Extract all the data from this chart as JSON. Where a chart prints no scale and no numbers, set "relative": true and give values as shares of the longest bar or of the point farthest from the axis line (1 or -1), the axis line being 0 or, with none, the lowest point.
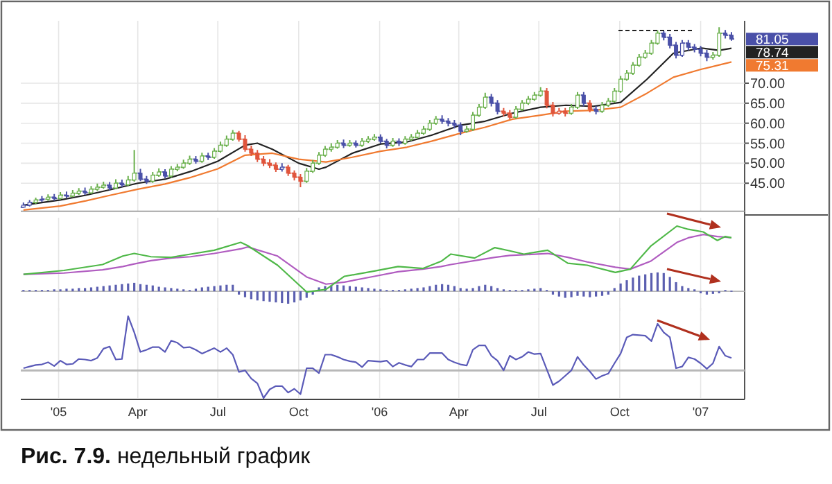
{
  "chart_data": [
    {
      "type": "candlestick",
      "xlim": [
        "2004-11-19",
        "2007-02-20"
      ],
      "ylim": [
        38,
        85.6
      ],
      "xticks": [
        {
          "value": "2005-01-01",
          "label": null
        },
        {
          "value": "2005-04-01",
          "label": null
        },
        {
          "value": "2005-07-01",
          "label": null
        },
        {
          "value": "2005-10-01",
          "label": null
        },
        {
          "value": "2006-01-01",
          "label": null
        },
        {
          "value": "2006-04-01",
          "label": null
        },
        {
          "value": "2006-07-01",
          "label": null
        },
        {
          "value": "2006-10-01",
          "label": null
        },
        {
          "value": "2007-01-01",
          "label": null
        }
      ],
      "yticks": [
        {
          "value": 45,
          "label": "45.00"
        },
        {
          "value": 50,
          "label": "50.00"
        },
        {
          "value": 55,
          "label": "55.00"
        },
        {
          "value": 60,
          "label": "60.00"
        },
        {
          "value": 65,
          "label": "65.00"
        },
        {
          "value": 70,
          "label": "70.00"
        }
      ],
      "grid": true,
      "tick_labels": "y",
      "x": [
        "2004-11-22",
        "2004-11-29",
        "2004-12-06",
        "2004-12-13",
        "2004-12-20",
        "2004-12-27",
        "2005-01-03",
        "2005-01-10",
        "2005-01-17",
        "2005-01-24",
        "2005-01-31",
        "2005-02-07",
        "2005-02-14",
        "2005-02-21",
        "2005-02-28",
        "2005-03-07",
        "2005-03-14",
        "2005-03-21",
        "2005-03-28",
        "2005-04-04",
        "2005-04-11",
        "2005-04-18",
        "2005-04-25",
        "2005-05-02",
        "2005-05-09",
        "2005-05-16",
        "2005-05-23",
        "2005-05-30",
        "2005-06-06",
        "2005-06-13",
        "2005-06-20",
        "2005-06-27",
        "2005-07-04",
        "2005-07-11",
        "2005-07-18",
        "2005-07-25",
        "2005-08-01",
        "2005-08-08",
        "2005-08-15",
        "2005-08-22",
        "2005-08-29",
        "2005-09-05",
        "2005-09-12",
        "2005-09-19",
        "2005-09-26",
        "2005-10-03",
        "2005-10-10",
        "2005-10-17",
        "2005-10-24",
        "2005-10-31",
        "2005-11-07",
        "2005-11-14",
        "2005-11-21",
        "2005-11-28",
        "2005-12-05",
        "2005-12-12",
        "2005-12-19",
        "2005-12-26",
        "2006-01-02",
        "2006-01-09",
        "2006-01-16",
        "2006-01-23",
        "2006-01-30",
        "2006-02-06",
        "2006-02-13",
        "2006-02-20",
        "2006-02-27",
        "2006-03-06",
        "2006-03-13",
        "2006-03-20",
        "2006-03-27",
        "2006-04-03",
        "2006-04-10",
        "2006-04-17",
        "2006-04-24",
        "2006-05-01",
        "2006-05-08",
        "2006-05-15",
        "2006-05-22",
        "2006-05-29",
        "2006-06-05",
        "2006-06-12",
        "2006-06-19",
        "2006-06-26",
        "2006-07-03",
        "2006-07-10",
        "2006-07-17",
        "2006-07-24",
        "2006-07-31",
        "2006-08-07",
        "2006-08-14",
        "2006-08-21",
        "2006-08-28",
        "2006-09-04",
        "2006-09-11",
        "2006-09-18",
        "2006-09-25",
        "2006-10-02",
        "2006-10-09",
        "2006-10-16",
        "2006-10-23",
        "2006-10-30",
        "2006-11-06",
        "2006-11-13",
        "2006-11-20",
        "2006-11-27",
        "2006-12-04",
        "2006-12-11",
        "2006-12-18",
        "2006-12-25",
        "2007-01-01",
        "2007-01-08",
        "2007-01-15",
        "2007-01-22",
        "2007-01-29",
        "2007-02-05"
      ],
      "ohlc": [
        [
          39.0,
          40.2,
          38.9,
          39.5
        ],
        [
          39.5,
          40.8,
          39.2,
          40.2
        ],
        [
          40.2,
          41.4,
          39.8,
          40.8
        ],
        [
          40.8,
          41.8,
          40.3,
          41.0
        ],
        [
          41.0,
          42.2,
          40.6,
          41.5
        ],
        [
          41.5,
          42.3,
          40.6,
          41.2
        ],
        [
          41.2,
          42.8,
          40.9,
          42.0
        ],
        [
          42.0,
          42.9,
          41.2,
          41.8
        ],
        [
          41.8,
          43.3,
          41.5,
          42.5
        ],
        [
          42.5,
          43.8,
          42.1,
          43.0
        ],
        [
          43.0,
          43.9,
          42.1,
          42.6
        ],
        [
          42.6,
          44.3,
          42.3,
          43.5
        ],
        [
          43.5,
          44.9,
          43.1,
          44.0
        ],
        [
          44.0,
          45.4,
          43.6,
          44.5
        ],
        [
          44.5,
          45.3,
          43.2,
          43.8
        ],
        [
          43.8,
          46.0,
          43.5,
          45.0
        ],
        [
          45.0,
          45.9,
          44.0,
          44.6
        ],
        [
          44.6,
          46.8,
          44.3,
          45.8
        ],
        [
          45.8,
          53.3,
          45.4,
          47.5
        ],
        [
          47.5,
          48.6,
          45.5,
          46.0
        ],
        [
          46.0,
          46.8,
          44.8,
          45.5
        ],
        [
          45.5,
          47.8,
          45.1,
          47.0
        ],
        [
          47.0,
          48.7,
          46.6,
          47.8
        ],
        [
          47.8,
          48.5,
          46.2,
          46.8
        ],
        [
          46.8,
          49.3,
          46.4,
          48.5
        ],
        [
          48.5,
          49.8,
          48.0,
          49.0
        ],
        [
          49.0,
          50.9,
          48.6,
          50.0
        ],
        [
          50.0,
          51.9,
          49.6,
          51.0
        ],
        [
          51.0,
          51.8,
          49.9,
          50.5
        ],
        [
          50.5,
          52.6,
          50.1,
          51.8
        ],
        [
          51.8,
          52.6,
          50.8,
          51.5
        ],
        [
          51.5,
          53.8,
          51.1,
          53.0
        ],
        [
          53.0,
          55.4,
          52.6,
          54.5
        ],
        [
          54.5,
          56.9,
          54.1,
          56.0
        ],
        [
          56.0,
          58.3,
          55.6,
          57.5
        ],
        [
          57.5,
          58.1,
          55.4,
          56.0
        ],
        [
          56.0,
          57.0,
          52.9,
          53.5
        ],
        [
          53.5,
          54.4,
          51.8,
          52.5
        ],
        [
          52.5,
          53.3,
          50.3,
          51.0
        ],
        [
          51.0,
          51.8,
          49.3,
          50.0
        ],
        [
          50.0,
          51.0,
          48.8,
          49.5
        ],
        [
          49.5,
          50.2,
          47.8,
          48.5
        ],
        [
          48.5,
          50.0,
          47.9,
          49.0
        ],
        [
          49.0,
          49.6,
          46.8,
          47.5
        ],
        [
          47.5,
          48.2,
          45.7,
          46.5
        ],
        [
          46.5,
          47.3,
          44.0,
          45.5
        ],
        [
          45.5,
          48.8,
          45.1,
          48.0
        ],
        [
          48.0,
          50.8,
          47.6,
          50.0
        ],
        [
          50.0,
          52.8,
          49.6,
          52.0
        ],
        [
          52.0,
          54.3,
          51.6,
          53.5
        ],
        [
          53.5,
          55.0,
          52.9,
          54.0
        ],
        [
          54.0,
          55.8,
          53.6,
          55.0
        ],
        [
          55.0,
          55.9,
          53.8,
          54.5
        ],
        [
          54.5,
          55.8,
          54.1,
          55.0
        ],
        [
          55.0,
          55.7,
          53.9,
          54.5
        ],
        [
          54.5,
          56.3,
          54.1,
          55.5
        ],
        [
          55.5,
          56.8,
          55.1,
          56.0
        ],
        [
          56.0,
          57.3,
          55.6,
          56.5
        ],
        [
          56.5,
          57.2,
          54.9,
          55.5
        ],
        [
          55.5,
          56.1,
          53.7,
          54.5
        ],
        [
          54.5,
          56.3,
          54.1,
          55.5
        ],
        [
          55.5,
          56.2,
          54.3,
          55.0
        ],
        [
          55.0,
          56.8,
          54.6,
          56.0
        ],
        [
          56.0,
          57.3,
          55.6,
          56.5
        ],
        [
          56.5,
          58.3,
          56.1,
          57.5
        ],
        [
          57.5,
          59.3,
          57.1,
          58.5
        ],
        [
          58.5,
          60.8,
          58.1,
          60.0
        ],
        [
          60.0,
          61.8,
          59.6,
          61.0
        ],
        [
          61.0,
          62.0,
          59.8,
          60.5
        ],
        [
          60.5,
          61.3,
          59.2,
          60.0
        ],
        [
          60.0,
          60.8,
          58.7,
          59.5
        ],
        [
          59.5,
          60.2,
          57.0,
          58.0
        ],
        [
          58.0,
          59.3,
          57.6,
          58.5
        ],
        [
          58.5,
          62.8,
          58.1,
          62.0
        ],
        [
          62.0,
          64.8,
          61.6,
          64.0
        ],
        [
          64.0,
          67.6,
          63.6,
          66.5
        ],
        [
          66.5,
          67.3,
          64.2,
          65.0
        ],
        [
          65.0,
          65.8,
          62.2,
          63.0
        ],
        [
          63.0,
          63.8,
          61.7,
          62.5
        ],
        [
          62.5,
          63.3,
          61.0,
          61.5
        ],
        [
          61.5,
          64.3,
          61.1,
          63.5
        ],
        [
          63.5,
          65.8,
          63.1,
          65.0
        ],
        [
          65.0,
          66.8,
          64.6,
          66.0
        ],
        [
          66.0,
          67.8,
          65.6,
          67.0
        ],
        [
          67.0,
          69.0,
          66.6,
          68.0
        ],
        [
          68.0,
          68.8,
          63.7,
          64.5
        ],
        [
          64.5,
          65.3,
          61.7,
          62.5
        ],
        [
          62.5,
          63.8,
          62.1,
          63.0
        ],
        [
          63.0,
          63.8,
          61.7,
          62.5
        ],
        [
          62.5,
          64.8,
          62.1,
          64.0
        ],
        [
          64.0,
          67.8,
          63.6,
          67.0
        ],
        [
          67.0,
          67.8,
          64.2,
          65.0
        ],
        [
          65.0,
          65.8,
          62.7,
          63.5
        ],
        [
          63.5,
          64.3,
          62.2,
          63.0
        ],
        [
          63.0,
          65.3,
          62.6,
          64.5
        ],
        [
          64.5,
          66.3,
          64.1,
          65.5
        ],
        [
          65.5,
          68.8,
          65.1,
          68.0
        ],
        [
          68.0,
          71.8,
          67.6,
          71.0
        ],
        [
          71.0,
          73.3,
          70.6,
          72.5
        ],
        [
          72.5,
          75.3,
          72.1,
          74.5
        ],
        [
          74.5,
          77.3,
          74.1,
          76.5
        ],
        [
          76.5,
          78.3,
          76.1,
          77.5
        ],
        [
          77.5,
          80.8,
          77.1,
          80.0
        ],
        [
          80.0,
          83.2,
          79.6,
          82.5
        ],
        [
          82.5,
          83.0,
          80.7,
          81.5
        ],
        [
          81.5,
          82.3,
          78.7,
          79.5
        ],
        [
          79.5,
          80.3,
          76.2,
          77.0
        ],
        [
          77.0,
          80.8,
          76.6,
          80.0
        ],
        [
          80.0,
          80.8,
          78.2,
          79.0
        ],
        [
          79.0,
          79.8,
          77.7,
          78.5
        ],
        [
          78.5,
          79.3,
          76.7,
          77.5
        ],
        [
          77.5,
          78.3,
          75.5,
          76.5
        ],
        [
          76.5,
          77.8,
          75.9,
          77.0
        ],
        [
          77.0,
          84.0,
          76.6,
          82.5
        ],
        [
          82.5,
          83.3,
          81.2,
          82.0
        ],
        [
          82.0,
          82.8,
          80.6,
          81.05
        ]
      ],
      "colors": [
        "#4a50a8",
        "#4a50a8",
        "#6ab04c",
        "#4a50a8",
        "#6ab04c",
        "#4a50a8",
        "#6ab04c",
        "#4a50a8",
        "#6ab04c",
        "#6ab04c",
        "#4a50a8",
        "#6ab04c",
        "#6ab04c",
        "#6ab04c",
        "#4a50a8",
        "#6ab04c",
        "#4a50a8",
        "#6ab04c",
        "#6ab04c",
        "#4a50a8",
        "#4a50a8",
        "#6ab04c",
        "#6ab04c",
        "#4a50a8",
        "#6ab04c",
        "#6ab04c",
        "#6ab04c",
        "#6ab04c",
        "#4a50a8",
        "#6ab04c",
        "#4a50a8",
        "#6ab04c",
        "#6ab04c",
        "#6ab04c",
        "#6ab04c",
        "#e0553c",
        "#e0553c",
        "#e0553c",
        "#e0553c",
        "#e0553c",
        "#e0553c",
        "#e0553c",
        "#4a50a8",
        "#e0553c",
        "#e0553c",
        "#e0553c",
        "#6ab04c",
        "#6ab04c",
        "#6ab04c",
        "#6ab04c",
        "#6ab04c",
        "#6ab04c",
        "#4a50a8",
        "#6ab04c",
        "#4a50a8",
        "#6ab04c",
        "#6ab04c",
        "#6ab04c",
        "#4a50a8",
        "#4a50a8",
        "#6ab04c",
        "#4a50a8",
        "#6ab04c",
        "#6ab04c",
        "#6ab04c",
        "#6ab04c",
        "#6ab04c",
        "#6ab04c",
        "#4a50a8",
        "#4a50a8",
        "#4a50a8",
        "#4a50a8",
        "#6ab04c",
        "#6ab04c",
        "#6ab04c",
        "#6ab04c",
        "#4a50a8",
        "#4a50a8",
        "#e0553c",
        "#e0553c",
        "#6ab04c",
        "#6ab04c",
        "#6ab04c",
        "#6ab04c",
        "#6ab04c",
        "#e0553c",
        "#e0553c",
        "#e0553c",
        "#e0553c",
        "#6ab04c",
        "#6ab04c",
        "#4a50a8",
        "#e0553c",
        "#4a50a8",
        "#6ab04c",
        "#6ab04c",
        "#6ab04c",
        "#6ab04c",
        "#6ab04c",
        "#6ab04c",
        "#6ab04c",
        "#6ab04c",
        "#6ab04c",
        "#6ab04c",
        "#4a50a8",
        "#4a50a8",
        "#4a50a8",
        "#4a50a8",
        "#4a50a8",
        "#4a50a8",
        "#4a50a8",
        "#4a50a8",
        "#6ab04c",
        "#6ab04c",
        "#4a50a8",
        "#4a50a8"
      ],
      "series": [
        {
          "type": "line",
          "color": "#222222",
          "x": [
            "2004-11-22",
            "2005-01-03",
            "2005-02-01",
            "2005-03-01",
            "2005-04-01",
            "2005-05-02",
            "2005-06-01",
            "2005-07-01",
            "2005-08-01",
            "2005-08-15",
            "2005-09-01",
            "2005-10-01",
            "2005-10-24",
            "2005-11-01",
            "2005-12-01",
            "2006-01-02",
            "2006-02-01",
            "2006-03-01",
            "2006-04-03",
            "2006-05-01",
            "2006-06-01",
            "2006-07-03",
            "2006-08-01",
            "2006-09-01",
            "2006-10-02",
            "2006-11-01",
            "2006-12-01",
            "2007-01-02",
            "2007-01-22",
            "2007-02-05"
          ],
          "values": [
            39.5,
            40.8,
            42,
            43.4,
            45,
            46,
            48,
            50.5,
            54.5,
            55,
            53.5,
            50,
            48.5,
            49,
            52.5,
            54.8,
            55.3,
            57,
            59.5,
            60.5,
            62.5,
            64,
            64.5,
            64.2,
            65.2,
            71,
            77.5,
            78.8,
            78.2,
            78.74
          ]
        },
        {
          "type": "line",
          "color": "#f07a30",
          "x": [
            "2004-11-22",
            "2005-01-03",
            "2005-02-01",
            "2005-03-01",
            "2005-04-01",
            "2005-05-02",
            "2005-06-01",
            "2005-07-01",
            "2005-08-01",
            "2005-09-01",
            "2005-10-01",
            "2005-11-01",
            "2005-12-01",
            "2006-01-02",
            "2006-02-01",
            "2006-03-01",
            "2006-04-03",
            "2006-05-01",
            "2006-06-01",
            "2006-07-03",
            "2006-08-01",
            "2006-09-01",
            "2006-10-02",
            "2006-11-01",
            "2006-12-01",
            "2007-01-02",
            "2007-02-05"
          ],
          "values": [
            38.3,
            39.3,
            40.6,
            42,
            43.5,
            44.8,
            46.5,
            48.6,
            52,
            52.5,
            51,
            50.3,
            51.5,
            53,
            54,
            55.5,
            57.5,
            59,
            61,
            62,
            63,
            63.2,
            64,
            67.5,
            71.5,
            73.5,
            75.31
          ]
        }
      ],
      "annotations": [
        {
          "text": "81.05",
          "x": "2007-02-05",
          "y": 81.05
        },
        {
          "text": "78.74",
          "x": "2007-02-05",
          "y": 78.74
        },
        {
          "text": "75.31",
          "x": "2007-02-05",
          "y": 75.31
        }
      ]
    },
    {
      "type": "line",
      "relative": true,
      "xlim": [
        "2004-11-19",
        "2007-02-20"
      ],
      "grid": "x",
      "tick_labels": false,
      "xticks": [
        {
          "value": "2005-01-01",
          "label": null
        },
        {
          "value": "2005-04-01",
          "label": null
        },
        {
          "value": "2005-07-01",
          "label": null
        },
        {
          "value": "2005-10-01",
          "label": null
        },
        {
          "value": "2006-01-01",
          "label": null
        },
        {
          "value": "2006-04-01",
          "label": null
        },
        {
          "value": "2006-07-01",
          "label": null
        },
        {
          "value": "2006-10-01",
          "label": null
        },
        {
          "value": "2007-01-01",
          "label": null
        }
      ],
      "x": [
        "2004-11-22",
        "2004-11-29",
        "2004-12-06",
        "2004-12-13",
        "2004-12-20",
        "2004-12-27",
        "2005-01-03",
        "2005-01-10",
        "2005-01-17",
        "2005-01-24",
        "2005-01-31",
        "2005-02-07",
        "2005-02-14",
        "2005-02-21",
        "2005-02-28",
        "2005-03-07",
        "2005-03-14",
        "2005-03-21",
        "2005-03-28",
        "2005-04-04",
        "2005-04-11",
        "2005-04-18",
        "2005-04-25",
        "2005-05-02",
        "2005-05-09",
        "2005-05-16",
        "2005-05-23",
        "2005-05-30",
        "2005-06-06",
        "2005-06-13",
        "2005-06-20",
        "2005-06-27",
        "2005-07-04",
        "2005-07-11",
        "2005-07-18",
        "2005-07-25",
        "2005-08-01",
        "2005-08-08",
        "2005-08-15",
        "2005-08-22",
        "2005-08-29",
        "2005-09-05",
        "2005-09-12",
        "2005-09-19",
        "2005-09-26",
        "2005-10-03",
        "2005-10-10",
        "2005-10-17",
        "2005-10-24",
        "2005-10-31",
        "2005-11-07",
        "2005-11-14",
        "2005-11-21",
        "2005-11-28",
        "2005-12-05",
        "2005-12-12",
        "2005-12-19",
        "2005-12-26",
        "2006-01-02",
        "2006-01-09",
        "2006-01-16",
        "2006-01-23",
        "2006-01-30",
        "2006-02-06",
        "2006-02-13",
        "2006-02-20",
        "2006-02-27",
        "2006-03-06",
        "2006-03-13",
        "2006-03-20",
        "2006-03-27",
        "2006-04-03",
        "2006-04-10",
        "2006-04-17",
        "2006-04-24",
        "2006-05-01",
        "2006-05-08",
        "2006-05-15",
        "2006-05-22",
        "2006-05-29",
        "2006-06-05",
        "2006-06-12",
        "2006-06-19",
        "2006-06-26",
        "2006-07-03",
        "2006-07-10",
        "2006-07-17",
        "2006-07-24",
        "2006-07-31",
        "2006-08-07",
        "2006-08-14",
        "2006-08-21",
        "2006-08-28",
        "2006-09-04",
        "2006-09-11",
        "2006-09-18",
        "2006-09-25",
        "2006-10-02",
        "2006-10-09",
        "2006-10-16",
        "2006-10-23",
        "2006-10-30",
        "2006-11-06",
        "2006-11-13",
        "2006-11-20",
        "2006-11-27",
        "2006-12-04",
        "2006-12-11",
        "2006-12-18",
        "2006-12-25",
        "2007-01-01",
        "2007-01-08",
        "2007-01-15",
        "2007-01-22",
        "2007-01-29",
        "2007-02-05"
      ],
      "series": [
        {
          "type": "bar",
          "color": "#5b5fb0",
          "values": [
            0.02,
            0.02,
            0.02,
            0.02,
            0.02,
            0.03,
            0.03,
            0.04,
            0.04,
            0.05,
            0.05,
            0.06,
            0.07,
            0.08,
            0.09,
            0.1,
            0.11,
            0.12,
            0.13,
            0.11,
            0.1,
            0.09,
            0.07,
            0.06,
            0.05,
            0.04,
            0.03,
            0.02,
            0.04,
            0.06,
            0.07,
            0.08,
            0.09,
            0.1,
            0.1,
            -0.05,
            -0.09,
            -0.12,
            -0.14,
            -0.15,
            -0.16,
            -0.17,
            -0.18,
            -0.19,
            -0.17,
            -0.14,
            -0.1,
            -0.05,
            0.06,
            0.08,
            0.09,
            0.1,
            0.09,
            0.08,
            0.07,
            0.06,
            0.05,
            0.04,
            0.03,
            0.02,
            0.02,
            0.02,
            0.03,
            0.04,
            0.05,
            0.06,
            0.08,
            0.1,
            0.11,
            0.1,
            0.08,
            0.05,
            0.04,
            0.05,
            0.08,
            0.1,
            0.08,
            0.05,
            0.03,
            0.02,
            0.02,
            0.02,
            0.03,
            0.04,
            0.05,
            0.02,
            -0.05,
            -0.08,
            -0.1,
            -0.09,
            -0.07,
            -0.08,
            -0.09,
            -0.08,
            -0.07,
            -0.05,
            0.05,
            0.12,
            0.17,
            0.21,
            0.24,
            0.26,
            0.28,
            0.29,
            0.28,
            0.22,
            0.14,
            0.08,
            0.05,
            0.03,
            -0.03,
            -0.05,
            -0.04,
            -0.03,
            0.02,
            0.01
          ]
        },
        {
          "type": "line",
          "color": "#b05cc0",
          "x": [
            "2004-11-22",
            "2005-01-07",
            "2005-02-20",
            "2005-03-15",
            "2005-03-28",
            "2005-04-16",
            "2005-05-09",
            "2005-05-31",
            "2005-06-27",
            "2005-07-27",
            "2005-08-04",
            "2005-09-07",
            "2005-10-10",
            "2005-11-01",
            "2005-11-22",
            "2005-12-26",
            "2006-01-22",
            "2006-02-19",
            "2006-03-12",
            "2006-03-23",
            "2006-04-19",
            "2006-05-12",
            "2006-05-29",
            "2006-06-14",
            "2006-07-11",
            "2006-08-03",
            "2006-08-25",
            "2006-09-26",
            "2006-10-13",
            "2006-11-05",
            "2006-12-05",
            "2006-12-18",
            "2007-01-04",
            "2007-01-20",
            "2007-01-29",
            "2007-02-05"
          ],
          "values": [
            0.26,
            0.28,
            0.33,
            0.38,
            0.42,
            0.47,
            0.51,
            0.53,
            0.58,
            0.65,
            0.68,
            0.54,
            0.22,
            0.11,
            0.14,
            0.23,
            0.3,
            0.34,
            0.38,
            0.41,
            0.47,
            0.52,
            0.55,
            0.56,
            0.58,
            0.52,
            0.45,
            0.37,
            0.34,
            0.46,
            0.75,
            0.82,
            0.87,
            0.84,
            0.83,
            0.82
          ]
        },
        {
          "type": "line",
          "color": "#4fb848",
          "x": [
            "2004-11-22",
            "2005-01-07",
            "2005-02-20",
            "2005-03-15",
            "2005-03-28",
            "2005-04-16",
            "2005-05-09",
            "2005-05-31",
            "2005-06-27",
            "2005-07-27",
            "2005-08-04",
            "2005-09-07",
            "2005-10-10",
            "2005-11-01",
            "2005-11-22",
            "2005-12-26",
            "2006-01-22",
            "2006-02-19",
            "2006-03-12",
            "2006-03-23",
            "2006-04-19",
            "2006-05-12",
            "2006-05-29",
            "2006-06-14",
            "2006-07-11",
            "2006-08-03",
            "2006-08-25",
            "2006-09-26",
            "2006-10-13",
            "2006-11-05",
            "2006-12-05",
            "2006-12-18",
            "2007-01-04",
            "2007-01-20",
            "2007-01-29",
            "2007-02-05"
          ],
          "values": [
            0.26,
            0.32,
            0.41,
            0.54,
            0.58,
            0.53,
            0.52,
            0.57,
            0.63,
            0.75,
            0.7,
            0.4,
            -0.01,
            0.03,
            0.23,
            0.31,
            0.38,
            0.35,
            0.46,
            0.57,
            0.51,
            0.67,
            0.62,
            0.57,
            0.63,
            0.43,
            0.4,
            0.29,
            0.34,
            0.69,
            1.0,
            0.95,
            0.91,
            0.78,
            0.84,
            0.82
          ]
        }
      ]
    },
    {
      "type": "line",
      "relative": true,
      "xlim": [
        "2004-11-19",
        "2007-02-20"
      ],
      "grid": "x",
      "tick_labels": "x",
      "xticks": [
        {
          "value": "2005-01-01",
          "label": "'05"
        },
        {
          "value": "2005-04-01",
          "label": "Apr"
        },
        {
          "value": "2005-07-01",
          "label": "Jul"
        },
        {
          "value": "2005-10-01",
          "label": "Oct"
        },
        {
          "value": "2006-01-01",
          "label": "'06"
        },
        {
          "value": "2006-04-01",
          "label": "Apr"
        },
        {
          "value": "2006-07-01",
          "label": "Jul"
        },
        {
          "value": "2006-10-01",
          "label": "Oct"
        },
        {
          "value": "2007-01-01",
          "label": "'07"
        }
      ],
      "x": [
        "2004-11-22",
        "2004-11-29",
        "2004-12-06",
        "2004-12-13",
        "2004-12-20",
        "2004-12-27",
        "2005-01-03",
        "2005-01-10",
        "2005-01-17",
        "2005-01-24",
        "2005-01-31",
        "2005-02-07",
        "2005-02-14",
        "2005-02-21",
        "2005-02-28",
        "2005-03-07",
        "2005-03-14",
        "2005-03-21",
        "2005-03-28",
        "2005-04-04",
        "2005-04-11",
        "2005-04-18",
        "2005-04-25",
        "2005-05-02",
        "2005-05-09",
        "2005-05-16",
        "2005-05-23",
        "2005-05-30",
        "2005-06-06",
        "2005-06-13",
        "2005-06-20",
        "2005-06-27",
        "2005-07-04",
        "2005-07-11",
        "2005-07-18",
        "2005-07-25",
        "2005-08-01",
        "2005-08-08",
        "2005-08-15",
        "2005-08-22",
        "2005-08-29",
        "2005-09-05",
        "2005-09-12",
        "2005-09-19",
        "2005-09-26",
        "2005-10-03",
        "2005-10-10",
        "2005-10-17",
        "2005-10-24",
        "2005-10-31",
        "2005-11-07",
        "2005-11-14",
        "2005-11-21",
        "2005-11-28",
        "2005-12-05",
        "2005-12-12",
        "2005-12-19",
        "2005-12-26",
        "2006-01-02",
        "2006-01-09",
        "2006-01-16",
        "2006-01-23",
        "2006-01-30",
        "2006-02-06",
        "2006-02-13",
        "2006-02-20",
        "2006-02-27",
        "2006-03-06",
        "2006-03-13",
        "2006-03-20",
        "2006-03-27",
        "2006-04-03",
        "2006-04-10",
        "2006-04-17",
        "2006-04-24",
        "2006-05-01",
        "2006-05-08",
        "2006-05-15",
        "2006-05-22",
        "2006-05-29",
        "2006-06-05",
        "2006-06-12",
        "2006-06-19",
        "2006-06-26",
        "2006-07-03",
        "2006-07-10",
        "2006-07-17",
        "2006-07-24",
        "2006-07-31",
        "2006-08-07",
        "2006-08-14",
        "2006-08-21",
        "2006-08-28",
        "2006-09-04",
        "2006-09-11",
        "2006-09-18",
        "2006-09-25",
        "2006-10-02",
        "2006-10-09",
        "2006-10-16",
        "2006-10-23",
        "2006-10-30",
        "2006-11-06",
        "2006-11-13",
        "2006-11-20",
        "2006-11-27",
        "2006-12-04",
        "2006-12-11",
        "2006-12-18",
        "2006-12-25",
        "2007-01-01",
        "2007-01-08",
        "2007-01-15",
        "2007-01-22",
        "2007-01-29",
        "2007-02-05"
      ],
      "series": [
        {
          "type": "line",
          "color": "#5a5ab8",
          "values": [
            0.04,
            0.07,
            0.1,
            0.11,
            0.15,
            0.08,
            0.18,
            0.11,
            0.12,
            0.21,
            0.2,
            0.18,
            0.23,
            0.4,
            0.44,
            0.2,
            0.21,
            1.0,
            0.7,
            0.34,
            0.38,
            0.43,
            0.43,
            0.34,
            0.55,
            0.51,
            0.42,
            0.43,
            0.38,
            0.31,
            0.36,
            0.41,
            0.34,
            0.41,
            0.29,
            -0.03,
            0,
            -0.15,
            -0.24,
            -0.51,
            -0.35,
            -0.29,
            -0.29,
            -0.41,
            -0.34,
            -0.44,
            0.04,
            0.04,
            -0.05,
            0.29,
            0.29,
            0.25,
            0.2,
            0.17,
            0.15,
            0.06,
            0.18,
            0.17,
            0.16,
            0.18,
            0.07,
            0.14,
            0.1,
            0.07,
            0.2,
            0.2,
            0.32,
            0.32,
            0.32,
            0.2,
            0.15,
            0.11,
            0.09,
            0.38,
            0.46,
            0.46,
            0.27,
            0.18,
            0,
            0.27,
            0.2,
            0.25,
            0.34,
            0.3,
            0.31,
            0.02,
            -0.27,
            -0.2,
            -0.1,
            0,
            0.25,
            0.1,
            -0.02,
            -0.16,
            -0.1,
            -0.06,
            0.13,
            0.31,
            0.61,
            0.66,
            0.65,
            0.64,
            0.54,
            0.86,
            0.7,
            0.61,
            0.04,
            0.07,
            0.24,
            0.21,
            0.13,
            0.03,
            0.13,
            0.44,
            0.27,
            0.23
          ]
        }
      ],
      "annotations": [
        "Рис. 7.9. недельный график"
      ]
    }
  ]
}
